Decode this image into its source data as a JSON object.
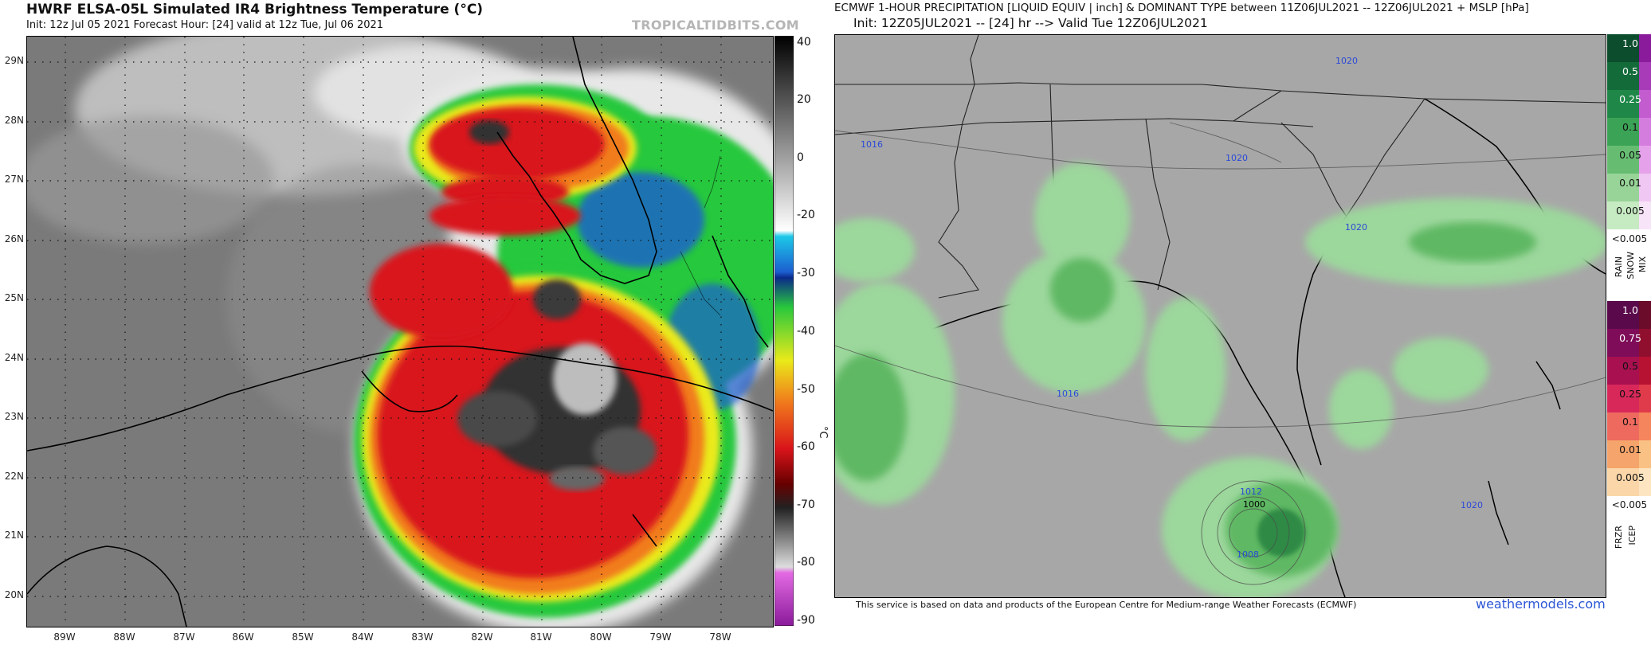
{
  "left_panel": {
    "title": "HWRF ELSA-05L Simulated IR4 Brightness Temperature (°C)",
    "subtitle": "Init: 12z Jul 05 2021   Forecast Hour: [24]   valid at 12z Tue, Jul 06 2021",
    "brand": "TROPICALTIDBITS.COM",
    "lat_labels": [
      "29N",
      "28N",
      "27N",
      "26N",
      "25N",
      "24N",
      "23N",
      "22N",
      "21N",
      "20N"
    ],
    "lon_labels": [
      "89W",
      "88W",
      "87W",
      "86W",
      "85W",
      "84W",
      "83W",
      "82W",
      "81W",
      "80W",
      "79W",
      "78W"
    ],
    "colorbar_labels": [
      "40",
      "20",
      "0",
      "-20",
      "-30",
      "-40",
      "-50",
      "-60",
      "-70",
      "-80",
      "-90"
    ],
    "colorbar_unit": "°C",
    "colors": {
      "cold_core": "#303030",
      "red": "#d8141a",
      "orange": "#f17b1c",
      "yellow": "#eaea1a",
      "green": "#28c83c",
      "blue": "#1c5fd0",
      "cyan": "#1cc8e8",
      "land_gray": "#7c7c7c",
      "cloud_white": "#e8e8e8"
    }
  },
  "right_panel": {
    "title": "ECMWF 1-HOUR PRECIPITATION [LIQUID EQUIV | inch] & DOMINANT TYPE between 11Z06JUL2021 -- 12Z06JUL2021 + MSLP [hPa]",
    "subtitle": "Init: 12Z05JUL2021 -- [24] hr --> Valid Tue 12Z06JUL2021",
    "credit": "This service is based on data and products of the European Centre for Medium-range Weather Forecasts (ECMWF)",
    "watermark": "weathermodels.com",
    "isobars": [
      "1020",
      "1016",
      "1020",
      "1020",
      "1016",
      "1012",
      "1000",
      "1008",
      "1020"
    ],
    "rain_snow_scale": [
      "1.0",
      "0.5",
      "0.25",
      "0.1",
      "0.05",
      "0.01",
      "0.005"
    ],
    "lt_label": "<0.005",
    "rain_snow_types": [
      "RAIN",
      "SNOW",
      "MIX"
    ],
    "frzr_scale": [
      "1.0",
      "0.75",
      "0.5",
      "0.25",
      "0.1",
      "0.01",
      "0.005"
    ],
    "lt_label2": "<0.005",
    "frzr_types": [
      "FRZR",
      "ICEP"
    ],
    "colors": {
      "background": "#a7a7a7",
      "precip_light": "#9cd79c",
      "precip_mid": "#5fb864",
      "precip_dark": "#2f8a44",
      "isobar": "#2b49d8"
    }
  }
}
